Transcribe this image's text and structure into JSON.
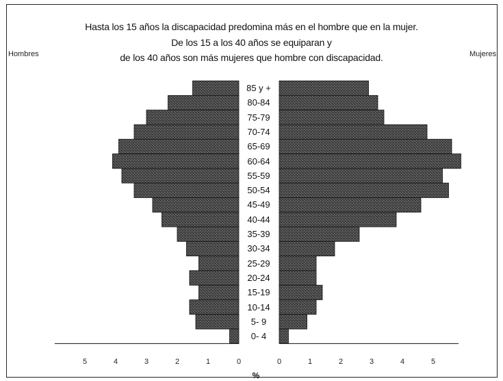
{
  "chart_data": {
    "type": "bar",
    "subtype": "population-pyramid",
    "title_lines": [
      "Hasta los 15 años la discapacidad predomina más en el hombre que en la mujer.",
      "De los 15 a los 40 años se equiparan y",
      "de los 40 años son más mujeres que hombre con discapacidad."
    ],
    "left_label": "Hombres",
    "right_label": "Mujeres",
    "xlabel": "%",
    "categories": [
      "85 y +",
      "80-84",
      "75-79",
      "70-74",
      "65-69",
      "60-64",
      "55-59",
      "50-54",
      "45-49",
      "40-44",
      "35-39",
      "30-34",
      "25-29",
      "20-24",
      "15-19",
      "10-14",
      "5- 9",
      "0- 4"
    ],
    "series": [
      {
        "name": "Hombres",
        "values": [
          1.5,
          2.3,
          3.0,
          3.4,
          3.9,
          4.1,
          3.8,
          3.4,
          2.8,
          2.5,
          2.0,
          1.7,
          1.3,
          1.6,
          1.3,
          1.6,
          1.4,
          0.3
        ]
      },
      {
        "name": "Mujeres",
        "values": [
          2.9,
          3.2,
          3.4,
          4.8,
          5.6,
          5.9,
          5.3,
          5.5,
          4.6,
          3.8,
          2.6,
          1.8,
          1.2,
          1.2,
          1.4,
          1.2,
          0.9,
          0.3
        ]
      }
    ],
    "left_ticks": [
      "5",
      "4",
      "3",
      "2",
      "1",
      "0"
    ],
    "right_ticks": [
      "0",
      "1",
      "2",
      "3",
      "4",
      "5"
    ],
    "xlim": [
      0,
      6
    ],
    "colors": {
      "bar_fill": "#3d3d3d",
      "bar_edge": "#111111"
    }
  }
}
